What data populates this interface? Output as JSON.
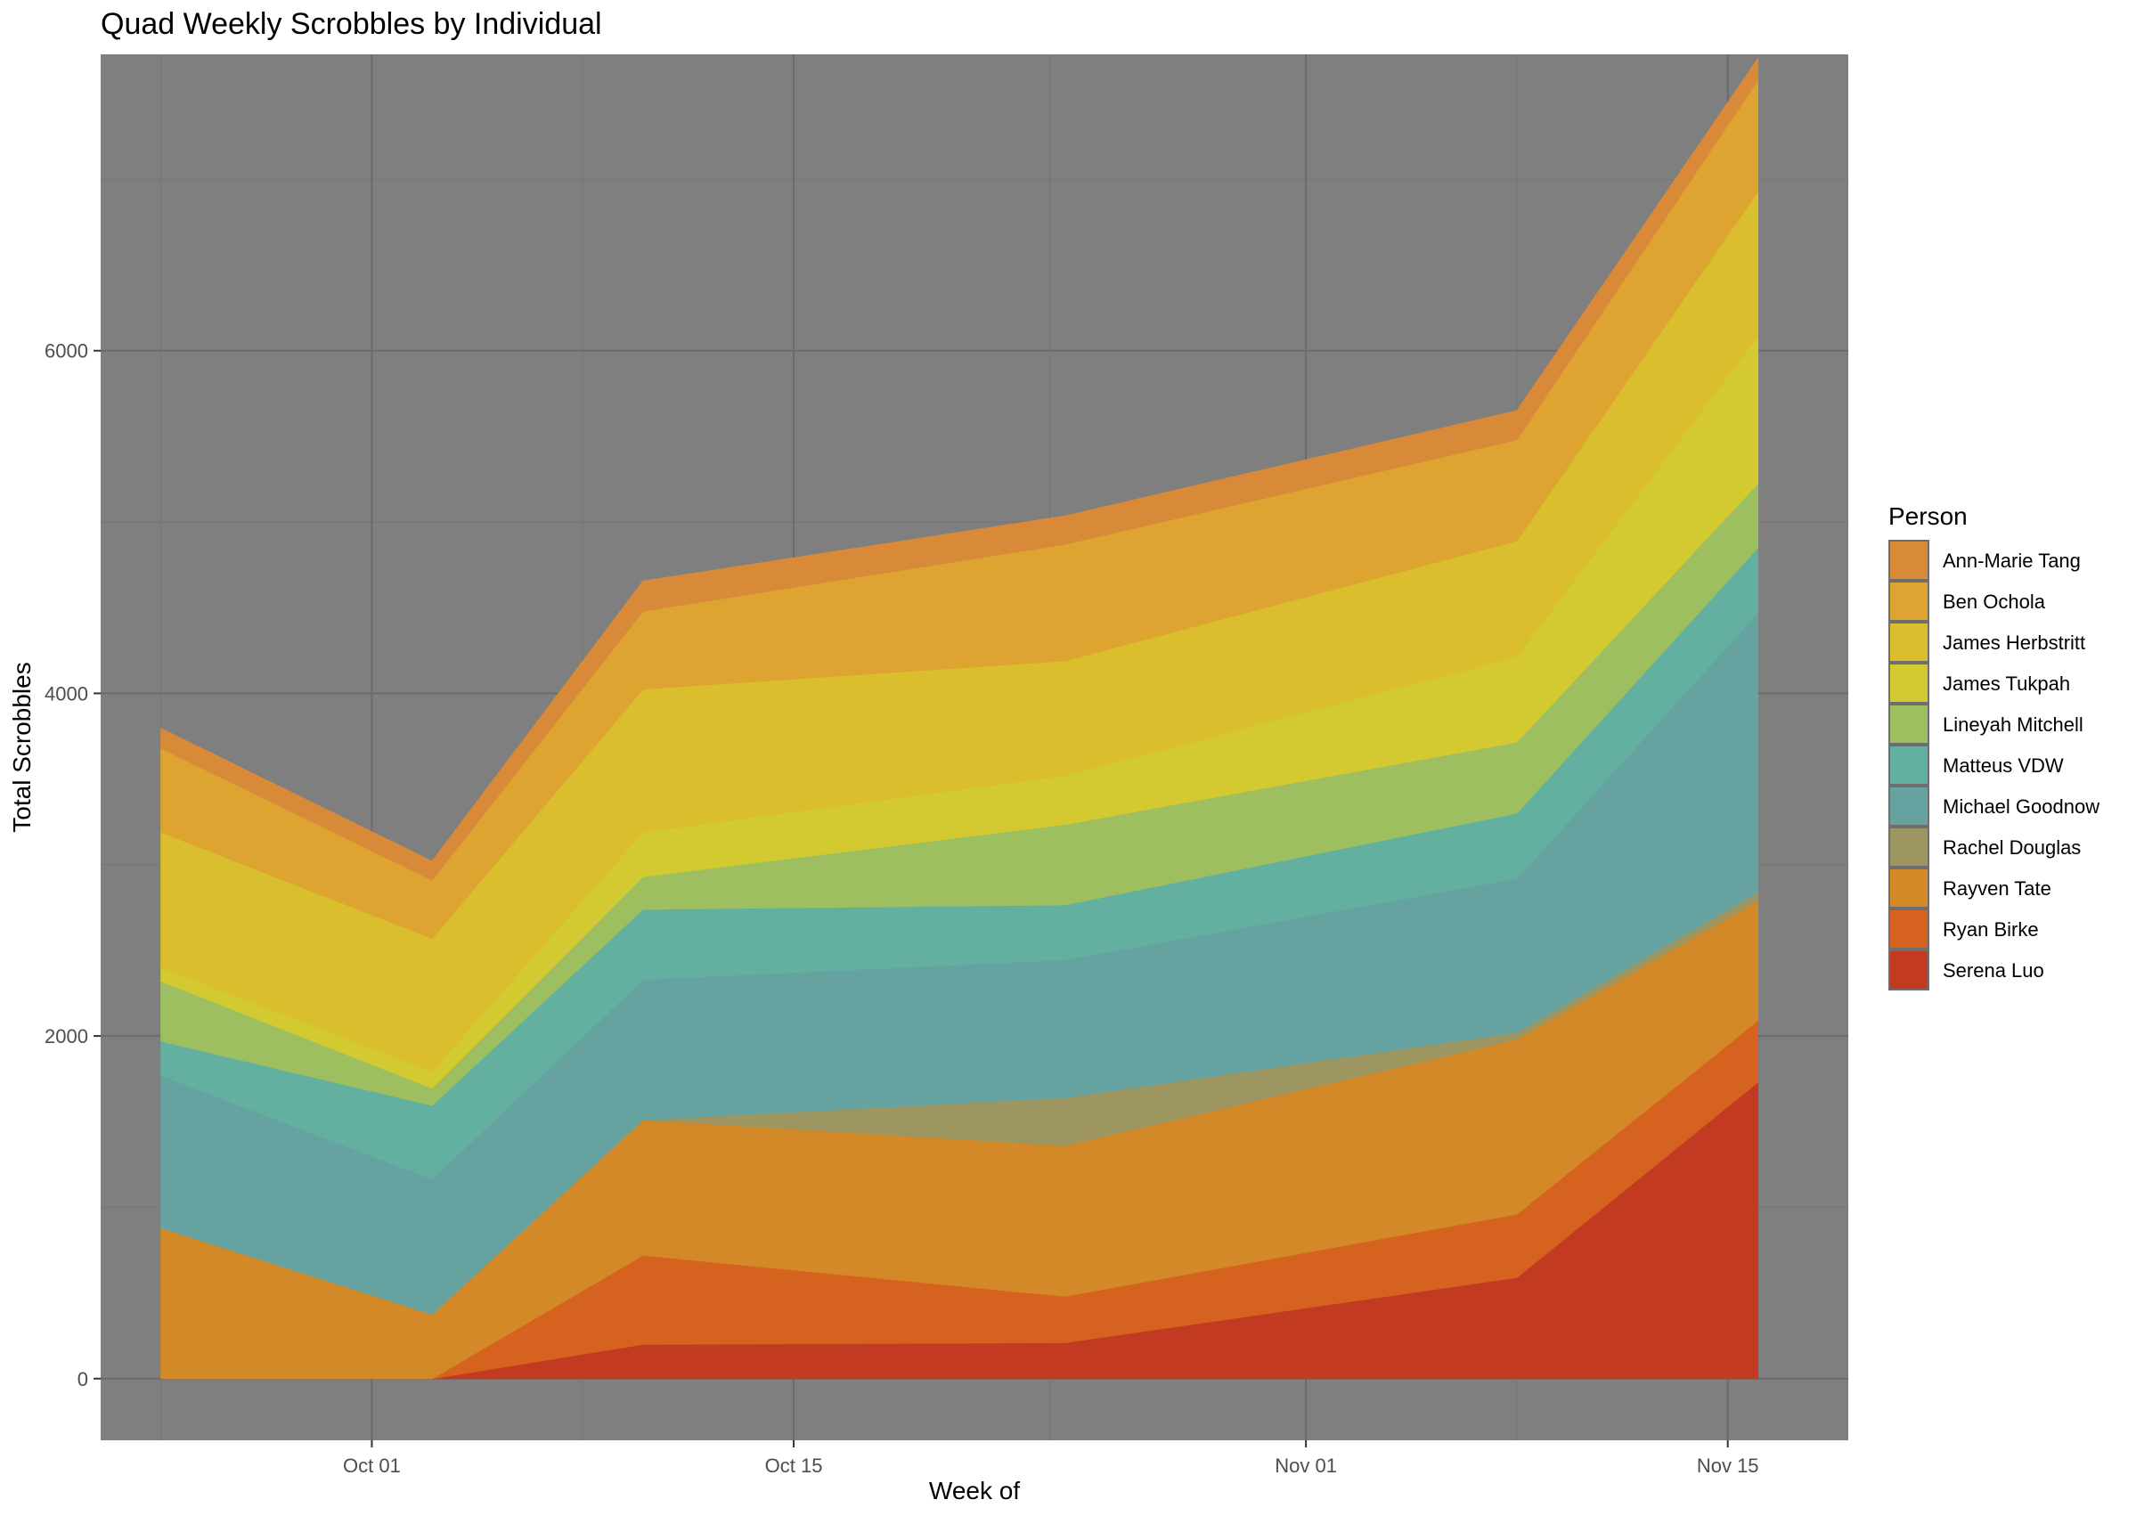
{
  "chart_data": {
    "type": "area",
    "stacked": true,
    "title": "Quad Weekly Scrobbles by Individual",
    "xlabel": "Week of",
    "ylabel": "Total Scrobbles",
    "x": [
      "2018-09-24",
      "2018-10-03",
      "2018-10-10",
      "2018-10-24",
      "2018-11-08",
      "2018-11-16"
    ],
    "x_ticks": [
      {
        "date": "2018-10-01",
        "label": "Oct 01"
      },
      {
        "date": "2018-10-15",
        "label": "Oct 15"
      },
      {
        "date": "2018-11-01",
        "label": "Nov 01"
      },
      {
        "date": "2018-11-15",
        "label": "Nov 15"
      }
    ],
    "xlim": [
      "2018-09-22",
      "2018-11-19"
    ],
    "ylim": [
      -360,
      7730
    ],
    "y_ticks": [
      0,
      2000,
      4000,
      6000
    ],
    "grid": true,
    "panel_background": "#7f7f7f",
    "legend_title": "Person",
    "legend_position": "right",
    "series": [
      {
        "name": "Ann-Marie Tang",
        "color": "#D98A38",
        "values": [
          115,
          110,
          175,
          165,
          170,
          125
        ]
      },
      {
        "name": "Ben Ochola",
        "color": "#DDA431",
        "values": [
          490,
          340,
          455,
          680,
          590,
          650
        ]
      },
      {
        "name": "James Herbstritt",
        "color": "#DABE2D",
        "values": [
          790,
          775,
          835,
          670,
          675,
          845
        ]
      },
      {
        "name": "James Tukpah",
        "color": "#D3CA31",
        "values": [
          80,
          100,
          260,
          285,
          500,
          860
        ]
      },
      {
        "name": "Lineyah Mitchell",
        "color": "#9DBF5F",
        "values": [
          350,
          100,
          190,
          470,
          415,
          375
        ]
      },
      {
        "name": "Matteus VDW",
        "color": "#63B0A0",
        "values": [
          200,
          430,
          410,
          320,
          380,
          380
        ]
      },
      {
        "name": "Michael Goodnow",
        "color": "#66A3A0",
        "values": [
          890,
          790,
          820,
          805,
          900,
          1630
        ]
      },
      {
        "name": "Rachel Douglas",
        "color": "#9D9660",
        "values": [
          0,
          0,
          0,
          280,
          40,
          50
        ]
      },
      {
        "name": "Rayven Tate",
        "color": "#D38927",
        "values": [
          880,
          375,
          790,
          880,
          1020,
          700
        ]
      },
      {
        "name": "Ryan Birke",
        "color": "#D5621F",
        "values": [
          0,
          0,
          520,
          270,
          370,
          360
        ]
      },
      {
        "name": "Serena Luo",
        "color": "#C23A21",
        "values": [
          0,
          0,
          200,
          210,
          590,
          1730
        ]
      }
    ]
  }
}
